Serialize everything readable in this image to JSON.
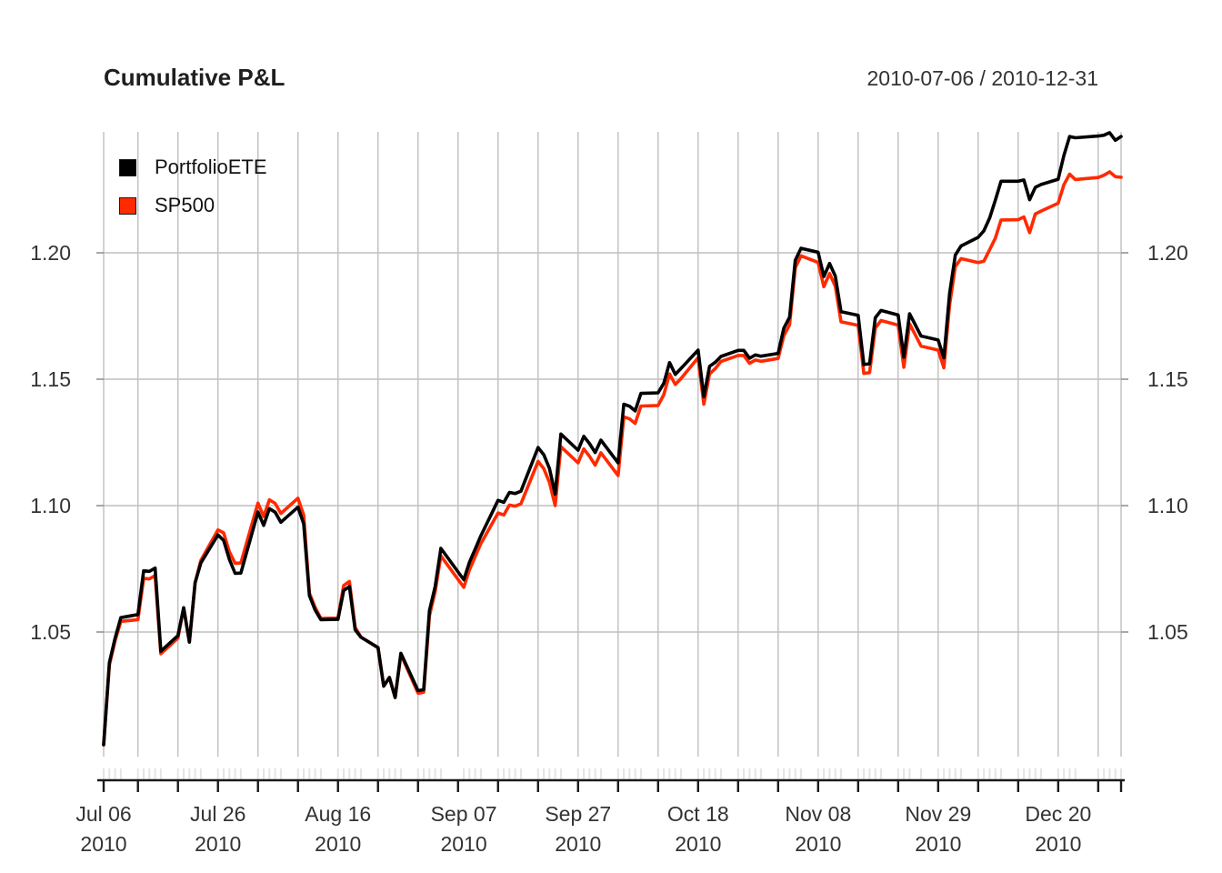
{
  "header": {
    "title": "Cumulative P&L",
    "date_range": "2010-07-06 / 2010-12-31"
  },
  "legend": {
    "items": [
      {
        "label": "PortfolioETE",
        "color": "#000000"
      },
      {
        "label": "SP500",
        "color": "#FF2A00"
      }
    ]
  },
  "chart_data": {
    "type": "line",
    "title": "Cumulative P&L",
    "subtitle": "2010-07-06 / 2010-12-31",
    "x_axis": "calendar-time (daily observations, trading days only)",
    "grid": true,
    "legend_position": "topleft",
    "ylim": [
      1.0,
      1.25
    ],
    "yticks": [
      1.05,
      1.1,
      1.15,
      1.2
    ],
    "ytick_labels": [
      "1.05",
      "1.10",
      "1.15",
      "1.20"
    ],
    "ytick_sides": [
      "left",
      "right"
    ],
    "xtick_labels": [
      {
        "date": "2010-07-06",
        "line1": "Jul 06",
        "line2": "2010"
      },
      {
        "date": "2010-07-26",
        "line1": "Jul 26",
        "line2": "2010"
      },
      {
        "date": "2010-08-16",
        "line1": "Aug 16",
        "line2": "2010"
      },
      {
        "date": "2010-09-07",
        "line1": "Sep 07",
        "line2": "2010"
      },
      {
        "date": "2010-09-27",
        "line1": "Sep 27",
        "line2": "2010"
      },
      {
        "date": "2010-10-18",
        "line1": "Oct 18",
        "line2": "2010"
      },
      {
        "date": "2010-11-08",
        "line1": "Nov 08",
        "line2": "2010"
      },
      {
        "date": "2010-11-29",
        "line1": "Nov 29",
        "line2": "2010"
      },
      {
        "date": "2010-12-20",
        "line1": "Dec 20",
        "line2": "2010"
      }
    ],
    "dates": [
      "2010-07-06",
      "2010-07-07",
      "2010-07-08",
      "2010-07-09",
      "2010-07-12",
      "2010-07-13",
      "2010-07-14",
      "2010-07-15",
      "2010-07-16",
      "2010-07-19",
      "2010-07-20",
      "2010-07-21",
      "2010-07-22",
      "2010-07-23",
      "2010-07-26",
      "2010-07-27",
      "2010-07-28",
      "2010-07-29",
      "2010-07-30",
      "2010-08-02",
      "2010-08-03",
      "2010-08-04",
      "2010-08-05",
      "2010-08-06",
      "2010-08-09",
      "2010-08-10",
      "2010-08-11",
      "2010-08-12",
      "2010-08-13",
      "2010-08-16",
      "2010-08-17",
      "2010-08-18",
      "2010-08-19",
      "2010-08-20",
      "2010-08-23",
      "2010-08-24",
      "2010-08-25",
      "2010-08-26",
      "2010-08-27",
      "2010-08-30",
      "2010-08-31",
      "2010-09-01",
      "2010-09-02",
      "2010-09-03",
      "2010-09-07",
      "2010-09-08",
      "2010-09-09",
      "2010-09-10",
      "2010-09-13",
      "2010-09-14",
      "2010-09-15",
      "2010-09-16",
      "2010-09-17",
      "2010-09-20",
      "2010-09-21",
      "2010-09-22",
      "2010-09-23",
      "2010-09-24",
      "2010-09-27",
      "2010-09-28",
      "2010-09-29",
      "2010-09-30",
      "2010-10-01",
      "2010-10-04",
      "2010-10-05",
      "2010-10-06",
      "2010-10-07",
      "2010-10-08",
      "2010-10-11",
      "2010-10-12",
      "2010-10-13",
      "2010-10-14",
      "2010-10-15",
      "2010-10-18",
      "2010-10-19",
      "2010-10-20",
      "2010-10-21",
      "2010-10-22",
      "2010-10-25",
      "2010-10-26",
      "2010-10-27",
      "2010-10-28",
      "2010-10-29",
      "2010-11-01",
      "2010-11-02",
      "2010-11-03",
      "2010-11-04",
      "2010-11-05",
      "2010-11-08",
      "2010-11-09",
      "2010-11-10",
      "2010-11-11",
      "2010-11-12",
      "2010-11-15",
      "2010-11-16",
      "2010-11-17",
      "2010-11-18",
      "2010-11-19",
      "2010-11-22",
      "2010-11-23",
      "2010-11-24",
      "2010-11-26",
      "2010-11-29",
      "2010-11-30",
      "2010-12-01",
      "2010-12-02",
      "2010-12-03",
      "2010-12-06",
      "2010-12-07",
      "2010-12-08",
      "2010-12-09",
      "2010-12-10",
      "2010-12-13",
      "2010-12-14",
      "2010-12-15",
      "2010-12-16",
      "2010-12-17",
      "2010-12-20",
      "2010-12-21",
      "2010-12-22",
      "2010-12-23",
      "2010-12-27",
      "2010-12-28",
      "2010-12-29",
      "2010-12-30",
      "2010-12-31"
    ],
    "series": [
      {
        "name": "PortfolioETE",
        "color": "#000000",
        "values": [
          1.0054,
          1.0379,
          1.0476,
          1.0557,
          1.0569,
          1.0742,
          1.074,
          1.0753,
          1.0424,
          1.0486,
          1.0596,
          1.046,
          1.0695,
          1.0773,
          1.0884,
          1.0862,
          1.0787,
          1.0732,
          1.0733,
          1.0975,
          1.0922,
          1.0988,
          1.0974,
          1.0934,
          1.0994,
          1.0928,
          1.0644,
          1.0587,
          1.0549,
          1.055,
          1.0664,
          1.068,
          1.0509,
          1.048,
          1.0438,
          1.0286,
          1.032,
          1.0241,
          1.0416,
          1.0268,
          1.0272,
          1.0584,
          1.068,
          1.0831,
          1.0707,
          1.0776,
          1.0828,
          1.0881,
          1.1021,
          1.1013,
          1.1052,
          1.1048,
          1.1057,
          1.123,
          1.1201,
          1.1147,
          1.1046,
          1.1283,
          1.1219,
          1.1274,
          1.1245,
          1.121,
          1.1259,
          1.1169,
          1.1401,
          1.1393,
          1.1375,
          1.1444,
          1.1446,
          1.1484,
          1.1566,
          1.1519,
          1.1542,
          1.1615,
          1.1431,
          1.1551,
          1.1567,
          1.159,
          1.1614,
          1.1614,
          1.1583,
          1.1596,
          1.1591,
          1.1602,
          1.1702,
          1.1745,
          1.1971,
          1.2018,
          1.2002,
          1.1906,
          1.1958,
          1.1908,
          1.1767,
          1.1753,
          1.1558,
          1.1561,
          1.1743,
          1.1772,
          1.1754,
          1.1587,
          1.1759,
          1.1671,
          1.1655,
          1.1585,
          1.1839,
          1.1991,
          1.2027,
          1.2061,
          1.2087,
          1.2137,
          1.2208,
          1.2283,
          1.2283,
          1.2288,
          1.221,
          1.2259,
          1.227,
          1.2291,
          1.2385,
          1.246,
          1.2455,
          1.2462,
          1.2465,
          1.2475,
          1.2445,
          1.246
        ]
      },
      {
        "name": "SP500",
        "color": "#FF2A00",
        "values": [
          1.0054,
          1.0369,
          1.0466,
          1.0542,
          1.0549,
          1.0712,
          1.071,
          1.0723,
          1.0414,
          1.0476,
          1.0596,
          1.046,
          1.0695,
          1.0783,
          1.0904,
          1.0892,
          1.0817,
          1.0772,
          1.0773,
          1.101,
          1.0957,
          1.1023,
          1.1009,
          1.0969,
          1.1029,
          1.0963,
          1.0654,
          1.0597,
          1.0554,
          1.0555,
          1.0684,
          1.07,
          1.0519,
          1.048,
          1.0438,
          1.0286,
          1.032,
          1.0241,
          1.0411,
          1.0258,
          1.0262,
          1.0564,
          1.066,
          1.0801,
          1.0677,
          1.0746,
          1.0798,
          1.085,
          1.0971,
          1.0963,
          1.1002,
          1.0998,
          1.1007,
          1.1175,
          1.1146,
          1.1092,
          1.1,
          1.1233,
          1.1169,
          1.1224,
          1.1195,
          1.116,
          1.1209,
          1.1119,
          1.1351,
          1.1343,
          1.1325,
          1.1394,
          1.1396,
          1.1439,
          1.1521,
          1.1479,
          1.1502,
          1.1585,
          1.1401,
          1.1521,
          1.1542,
          1.157,
          1.1594,
          1.1594,
          1.1563,
          1.1576,
          1.1571,
          1.1582,
          1.1672,
          1.1715,
          1.1941,
          1.1988,
          1.1962,
          1.1866,
          1.1918,
          1.1868,
          1.1727,
          1.1713,
          1.1523,
          1.1526,
          1.1703,
          1.1732,
          1.1714,
          1.1547,
          1.1719,
          1.1631,
          1.1615,
          1.1545,
          1.1794,
          1.1946,
          1.1977,
          1.1961,
          1.1967,
          1.2012,
          1.2058,
          1.213,
          1.2131,
          1.2142,
          1.208,
          1.2154,
          1.2165,
          1.2196,
          1.2269,
          1.2311,
          1.229,
          1.2298,
          1.2307,
          1.232,
          1.2301,
          1.2299
        ]
      }
    ]
  }
}
